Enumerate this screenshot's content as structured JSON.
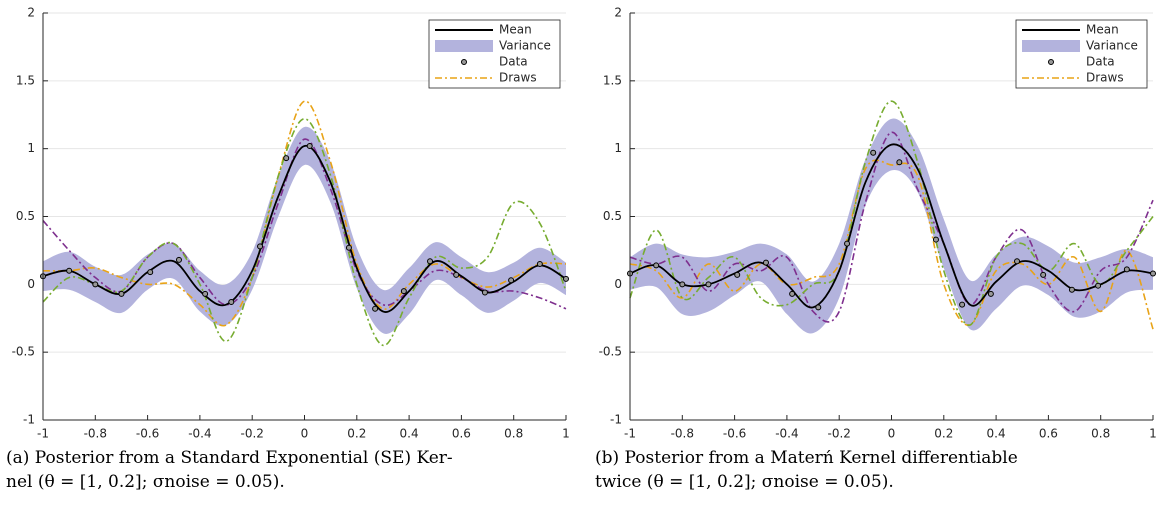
{
  "chart_data": [
    {
      "type": "line",
      "caption": [
        "(a) Posterior from a Standard Exponential (SE) Ker-",
        "nel (θ = [1, 0.2]; σnoise = 0.05)."
      ],
      "x": [
        -1,
        -0.9,
        -0.8,
        -0.7,
        -0.6,
        -0.5,
        -0.4,
        -0.3,
        -0.2,
        -0.1,
        0,
        0.1,
        0.2,
        0.3,
        0.4,
        0.5,
        0.6,
        0.7,
        0.8,
        0.9,
        1
      ],
      "xlim": [
        -1,
        1
      ],
      "xticks": [
        -1,
        -0.8,
        -0.6,
        -0.4,
        -0.2,
        0,
        0.2,
        0.4,
        0.6,
        0.8,
        1
      ],
      "ylim": [
        -1,
        2
      ],
      "yticks": [
        -1,
        -0.5,
        0,
        0.5,
        1,
        1.5,
        2
      ],
      "grid": true,
      "series": [
        {
          "name": "Mean",
          "color": "#000000",
          "values": [
            0.06,
            0.1,
            0.0,
            -0.07,
            0.09,
            0.17,
            -0.05,
            -0.15,
            0.1,
            0.65,
            1.02,
            0.75,
            0.12,
            -0.2,
            -0.05,
            0.17,
            0.06,
            -0.06,
            0.02,
            0.14,
            0.04
          ]
        }
      ],
      "band": {
        "name": "Variance",
        "color": "#b3b3dd",
        "upper": [
          0.17,
          0.24,
          0.13,
          0.07,
          0.22,
          0.3,
          0.1,
          0.0,
          0.24,
          0.8,
          1.16,
          0.9,
          0.27,
          -0.04,
          0.12,
          0.31,
          0.2,
          0.09,
          0.16,
          0.27,
          0.16
        ],
        "lower": [
          -0.05,
          -0.04,
          -0.13,
          -0.21,
          -0.04,
          0.04,
          -0.2,
          -0.3,
          -0.04,
          0.5,
          0.88,
          0.6,
          -0.03,
          -0.36,
          -0.22,
          0.03,
          -0.08,
          -0.21,
          -0.12,
          0.01,
          -0.08
        ]
      },
      "points": {
        "name": "Data",
        "x": [
          -1,
          -0.9,
          -0.8,
          -0.7,
          -0.59,
          -0.48,
          -0.38,
          -0.28,
          -0.17,
          -0.07,
          0.02,
          0.17,
          0.27,
          0.38,
          0.48,
          0.58,
          0.69,
          0.79,
          0.9,
          1
        ],
        "y": [
          0.06,
          0.1,
          0.0,
          -0.07,
          0.09,
          0.18,
          -0.07,
          -0.13,
          0.28,
          0.93,
          1.02,
          0.27,
          -0.18,
          -0.05,
          0.17,
          0.07,
          -0.06,
          0.03,
          0.15,
          0.04
        ]
      },
      "draws": {
        "name": "Draws",
        "series": [
          {
            "color": "#e8a317",
            "values": [
              0.1,
              0.1,
              0.12,
              0.05,
              0.0,
              0.0,
              -0.15,
              -0.3,
              0.05,
              0.8,
              1.35,
              0.9,
              0.15,
              -0.18,
              0.0,
              0.15,
              0.05,
              -0.02,
              0.05,
              0.15,
              0.15
            ]
          },
          {
            "color": "#7e2f8e",
            "values": [
              0.47,
              0.25,
              0.05,
              -0.05,
              0.2,
              0.3,
              0.05,
              -0.15,
              0.05,
              0.6,
              1.07,
              0.7,
              0.1,
              -0.15,
              -0.05,
              0.1,
              0.05,
              -0.05,
              -0.05,
              -0.1,
              -0.18
            ]
          },
          {
            "color": "#77ac30",
            "values": [
              -0.13,
              0.05,
              0.0,
              -0.05,
              0.2,
              0.3,
              0.0,
              -0.42,
              0.05,
              0.8,
              1.22,
              0.8,
              0.0,
              -0.45,
              -0.1,
              0.2,
              0.12,
              0.2,
              0.6,
              0.45,
              -0.05
            ]
          }
        ]
      }
    },
    {
      "type": "line",
      "caption": [
        "(b) Posterior from a Materń Kernel differentiable",
        "twice (θ = [1, 0.2]; σnoise = 0.05)."
      ],
      "x": [
        -1,
        -0.9,
        -0.8,
        -0.7,
        -0.6,
        -0.5,
        -0.4,
        -0.3,
        -0.2,
        -0.1,
        0,
        0.1,
        0.2,
        0.3,
        0.4,
        0.5,
        0.6,
        0.7,
        0.8,
        0.9,
        1
      ],
      "xlim": [
        -1,
        1
      ],
      "xticks": [
        -1,
        -0.8,
        -0.6,
        -0.4,
        -0.2,
        0,
        0.2,
        0.4,
        0.6,
        0.8,
        1
      ],
      "ylim": [
        -1,
        2
      ],
      "yticks": [
        -1,
        -0.5,
        0,
        0.5,
        1,
        1.5,
        2
      ],
      "grid": true,
      "series": [
        {
          "name": "Mean",
          "color": "#000000",
          "values": [
            0.08,
            0.14,
            0.0,
            0.0,
            0.08,
            0.16,
            0.0,
            -0.17,
            0.1,
            0.75,
            1.03,
            0.85,
            0.3,
            -0.15,
            0.02,
            0.17,
            0.1,
            -0.04,
            0.0,
            0.1,
            0.08
          ]
        }
      ],
      "band": {
        "name": "Variance",
        "color": "#b3b3dd",
        "upper": [
          0.2,
          0.3,
          0.22,
          0.2,
          0.24,
          0.3,
          0.22,
          0.02,
          0.3,
          0.92,
          1.22,
          1.02,
          0.48,
          0.03,
          0.22,
          0.35,
          0.28,
          0.16,
          0.2,
          0.26,
          0.2
        ],
        "lower": [
          -0.04,
          -0.02,
          -0.22,
          -0.2,
          -0.08,
          0.02,
          -0.22,
          -0.36,
          -0.1,
          0.58,
          0.84,
          0.68,
          0.12,
          -0.33,
          -0.18,
          -0.01,
          -0.08,
          -0.24,
          -0.2,
          -0.06,
          -0.04
        ]
      },
      "points": {
        "name": "Data",
        "x": [
          -1,
          -0.9,
          -0.8,
          -0.7,
          -0.59,
          -0.48,
          -0.38,
          -0.28,
          -0.17,
          -0.07,
          0.03,
          0.17,
          0.27,
          0.38,
          0.48,
          0.58,
          0.69,
          0.79,
          0.9,
          1
        ],
        "y": [
          0.08,
          0.14,
          0.0,
          0.0,
          0.07,
          0.16,
          -0.07,
          -0.17,
          0.3,
          0.97,
          0.9,
          0.33,
          -0.15,
          -0.07,
          0.17,
          0.07,
          -0.04,
          -0.01,
          0.11,
          0.08
        ]
      },
      "draws": {
        "name": "Draws",
        "series": [
          {
            "color": "#e8a317",
            "values": [
              0.15,
              0.1,
              -0.1,
              0.15,
              -0.05,
              0.15,
              0.0,
              0.05,
              0.15,
              0.85,
              0.88,
              0.8,
              0.0,
              -0.3,
              0.1,
              0.15,
              0.0,
              0.2,
              -0.2,
              0.25,
              -0.33
            ]
          },
          {
            "color": "#7e2f8e",
            "values": [
              0.2,
              0.15,
              0.2,
              -0.05,
              0.15,
              0.1,
              0.2,
              -0.2,
              -0.2,
              0.6,
              1.12,
              0.7,
              0.3,
              -0.15,
              0.2,
              0.4,
              0.0,
              -0.2,
              0.1,
              0.2,
              0.62
            ]
          },
          {
            "color": "#77ac30",
            "values": [
              -0.1,
              0.4,
              -0.1,
              0.05,
              0.2,
              -0.1,
              -0.15,
              0.0,
              0.1,
              0.9,
              1.35,
              0.9,
              0.1,
              -0.3,
              0.2,
              0.3,
              0.1,
              0.3,
              0.0,
              0.25,
              0.5
            ]
          }
        ]
      }
    }
  ]
}
